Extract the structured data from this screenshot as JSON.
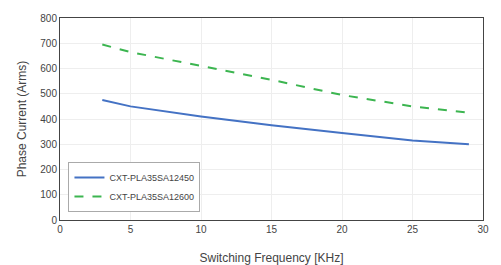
{
  "chart_data": {
    "type": "line",
    "x": [
      3,
      5,
      10,
      15,
      20,
      25,
      29
    ],
    "series": [
      {
        "name": "CXT-PLA35SA12450",
        "color": "#4472C4",
        "line_style": "solid",
        "values": [
          475,
          450,
          410,
          375,
          345,
          315,
          300
        ]
      },
      {
        "name": "CXT-PLA35SA12600",
        "color": "#3CB550",
        "line_style": "dashed",
        "values": [
          695,
          665,
          610,
          555,
          495,
          450,
          425
        ]
      }
    ],
    "xlabel": "Switching Frequency [KHz]",
    "ylabel": "Phase Current (Arms)",
    "xlim": [
      0,
      30
    ],
    "ylim": [
      0,
      800
    ],
    "xticks": [
      0,
      5,
      10,
      15,
      20,
      25,
      30
    ],
    "yticks": [
      0,
      100,
      200,
      300,
      400,
      500,
      600,
      700,
      800
    ],
    "grid": true,
    "legend": "lower left"
  }
}
